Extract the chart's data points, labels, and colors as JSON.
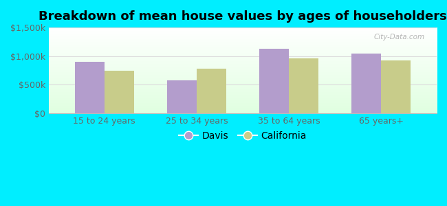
{
  "title": "Breakdown of mean house values by ages of householders",
  "categories": [
    "15 to 24 years",
    "25 to 34 years",
    "35 to 64 years",
    "65 years+"
  ],
  "davis_values": [
    900000,
    575000,
    1125000,
    1050000
  ],
  "california_values": [
    750000,
    775000,
    960000,
    920000
  ],
  "davis_color": "#b39dcc",
  "california_color": "#c8cc8a",
  "background_outer": "#00eeff",
  "ylim": [
    0,
    1500000
  ],
  "yticks": [
    0,
    500000,
    1000000,
    1500000
  ],
  "ytick_labels": [
    "$0",
    "$500k",
    "$1,000k",
    "$1,500k"
  ],
  "legend_labels": [
    "Davis",
    "California"
  ],
  "bar_width": 0.32,
  "title_fontsize": 13,
  "tick_fontsize": 9,
  "legend_fontsize": 10,
  "watermark": "City-Data.com"
}
